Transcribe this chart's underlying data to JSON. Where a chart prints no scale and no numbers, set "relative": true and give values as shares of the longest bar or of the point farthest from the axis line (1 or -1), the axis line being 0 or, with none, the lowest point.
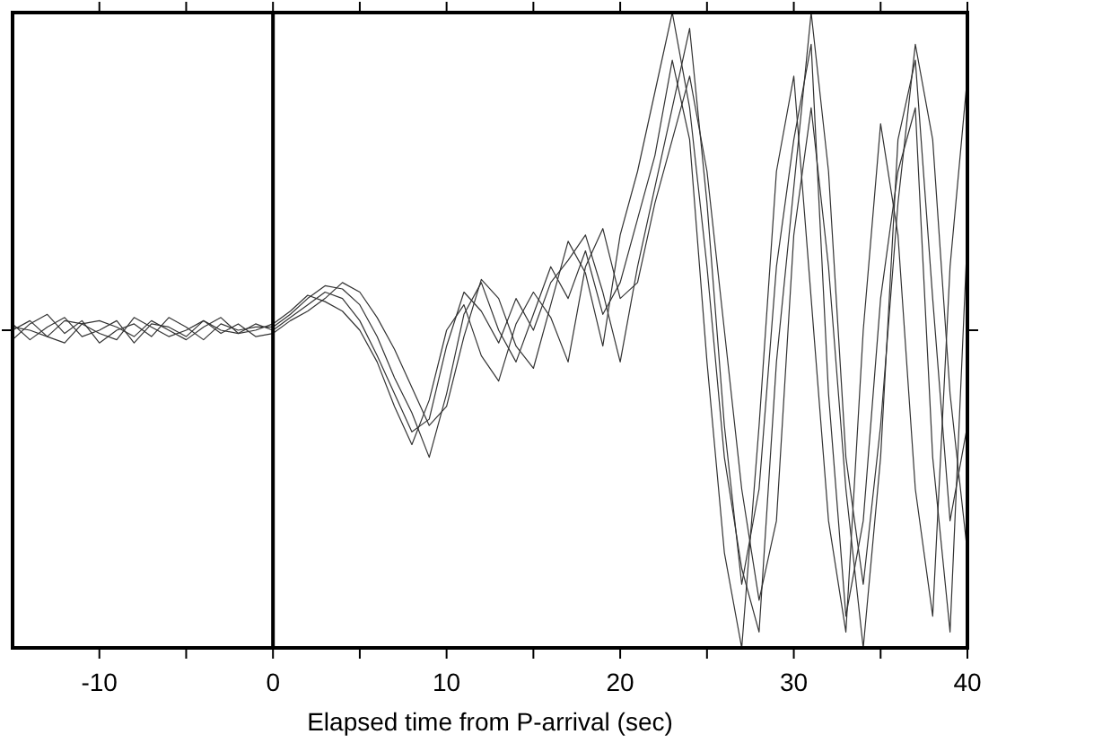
{
  "chart_data": {
    "type": "line",
    "relative": true,
    "xlabel": "Elapsed time from P-arrival (sec)",
    "x": [
      -15,
      -14,
      -13,
      -12,
      -11,
      -10,
      -9,
      -8,
      -7,
      -6,
      -5,
      -4,
      -3,
      -2,
      -1,
      0,
      1,
      2,
      3,
      4,
      5,
      6,
      7,
      8,
      9,
      10,
      11,
      12,
      13,
      14,
      15,
      16,
      17,
      18,
      19,
      20,
      21,
      22,
      23,
      24,
      25,
      26,
      27,
      28,
      29,
      30,
      31,
      32,
      33,
      34,
      35,
      36,
      37,
      38,
      39,
      40
    ],
    "xlim": [
      -15,
      40
    ],
    "xticks": [
      -10,
      {
        "value": -5,
        "label": null
      },
      0,
      {
        "value": 5,
        "label": null
      },
      10,
      {
        "value": 15,
        "label": null
      },
      20,
      {
        "value": 25,
        "label": null
      },
      30,
      {
        "value": 35,
        "label": null
      },
      40
    ],
    "marker": "none",
    "line_style": "solid",
    "ref_lines": [
      {
        "axis": "x",
        "value": 0,
        "label": null,
        "color": "#000000"
      }
    ],
    "series": [
      {
        "color": "#333333",
        "values": [
          0.51,
          0.485,
          0.505,
          0.52,
          0.49,
          0.5,
          0.515,
          0.48,
          0.51,
          0.505,
          0.49,
          0.515,
          0.5,
          0.495,
          0.51,
          0.5,
          0.52,
          0.54,
          0.56,
          0.55,
          0.515,
          0.46,
          0.4,
          0.34,
          0.36,
          0.475,
          0.56,
          0.53,
          0.48,
          0.55,
          0.5,
          0.575,
          0.61,
          0.65,
          0.56,
          0.45,
          0.6,
          0.725,
          0.85,
          0.975,
          0.7,
          0.35,
          0.1,
          0.25,
          0.6,
          0.8,
          0.95,
          0.4,
          0.05,
          0.2,
          0.55,
          0.75,
          0.85,
          0.3,
          0.025,
          0.65
        ]
      },
      {
        "color": "#333333",
        "values": [
          0.485,
          0.51,
          0.525,
          0.495,
          0.515,
          0.48,
          0.5,
          0.51,
          0.49,
          0.52,
          0.505,
          0.485,
          0.51,
          0.5,
          0.505,
          0.505,
          0.525,
          0.55,
          0.57,
          0.565,
          0.54,
          0.49,
          0.425,
          0.37,
          0.3,
          0.4,
          0.525,
          0.575,
          0.5,
          0.45,
          0.525,
          0.6,
          0.55,
          0.625,
          0.525,
          0.575,
          0.675,
          0.775,
          0.925,
          0.8,
          0.45,
          0.15,
          0,
          0.35,
          0.75,
          0.9,
          0.55,
          0.2,
          0.025,
          0.5,
          0.825,
          0.65,
          0.25,
          0.05,
          0.6,
          0.9
        ]
      },
      {
        "color": "#333333",
        "values": [
          0.505,
          0.5,
          0.49,
          0.515,
          0.51,
          0.495,
          0.485,
          0.52,
          0.505,
          0.49,
          0.5,
          0.515,
          0.495,
          0.51,
          0.49,
          0.495,
          0.515,
          0.53,
          0.55,
          0.575,
          0.56,
          0.52,
          0.47,
          0.41,
          0.35,
          0.38,
          0.49,
          0.58,
          0.55,
          0.475,
          0.44,
          0.54,
          0.64,
          0.59,
          0.475,
          0.65,
          0.75,
          0.875,
          1,
          0.85,
          0.6,
          0.3,
          0.125,
          0.025,
          0.45,
          0.725,
          1,
          0.75,
          0.3,
          0.1,
          0.35,
          0.7,
          0.95,
          0.8,
          0.4,
          0.15
        ]
      },
      {
        "color": "#333333",
        "values": [
          0.5,
          0.515,
          0.49,
          0.48,
          0.51,
          0.515,
          0.505,
          0.49,
          0.515,
          0.5,
          0.485,
          0.505,
          0.52,
          0.495,
          0.5,
          0.51,
          0.53,
          0.555,
          0.545,
          0.53,
          0.5,
          0.45,
          0.38,
          0.32,
          0.39,
          0.5,
          0.54,
          0.46,
          0.42,
          0.51,
          0.56,
          0.52,
          0.45,
          0.6,
          0.66,
          0.55,
          0.575,
          0.7,
          0.8,
          0.9,
          0.75,
          0.5,
          0.25,
          0.075,
          0.2,
          0.65,
          0.85,
          0.6,
          0.25,
          0,
          0.3,
          0.8,
          0.925,
          0.55,
          0.2,
          0.35
        ]
      }
    ]
  }
}
